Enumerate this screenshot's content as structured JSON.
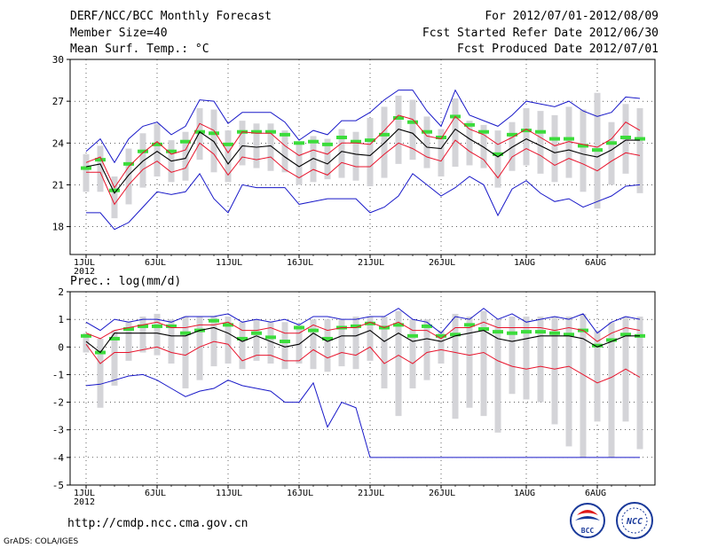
{
  "header": {
    "title": "DERF/NCC/BCC Monthly Forecast",
    "member_size": "Member Size=40",
    "variable": "Mean Surf. Temp.: °C",
    "period": "For 2012/07/01-2012/08/09",
    "started": "Fcst Started Refer Date 2012/06/30",
    "produced": "Fcst Produced Date 2012/07/01"
  },
  "footer": {
    "url": "http://cmdp.ncc.cma.gov.cn",
    "credit": "GrADS: COLA/IGES",
    "logo_bcc": "BCC",
    "logo_ncc": "NCC"
  },
  "colors": {
    "mean": "#000000",
    "spread": "#e8142c",
    "extreme": "#1818c8",
    "box": "#d4d4d8",
    "clim": "#3cdc3c"
  },
  "chart_data": [
    {
      "type": "line",
      "title": "Mean Surf. Temp.: °C",
      "ylim": [
        16,
        30
      ],
      "yticks": [
        18,
        21,
        24,
        27,
        30
      ],
      "x_tick_labels": [
        "1JUL",
        "6JUL",
        "11JUL",
        "16JUL",
        "21JUL",
        "26JUL",
        "1AUG",
        "6AUG"
      ],
      "x_tick_days": [
        1,
        6,
        11,
        16,
        21,
        26,
        32,
        37
      ],
      "year_label": "2012",
      "grid": true,
      "days": 40,
      "series": [
        {
          "name": "max",
          "values": [
            23.4,
            24.3,
            22.6,
            24.3,
            25.2,
            25.5,
            24.6,
            25.2,
            27.1,
            27.0,
            25.4,
            26.2,
            26.2,
            26.2,
            25.5,
            24.2,
            24.9,
            24.6,
            25.6,
            25.6,
            26.2,
            27.1,
            27.8,
            27.8,
            26.3,
            25.2,
            27.8,
            26.0,
            25.6,
            25.2,
            26.0,
            27.0,
            26.8,
            26.6,
            27.0,
            26.3,
            25.9,
            26.2,
            27.3,
            27.2
          ]
        },
        {
          "name": "upper",
          "values": [
            22.6,
            23.0,
            20.8,
            22.3,
            23.3,
            24.1,
            23.2,
            23.5,
            25.4,
            24.9,
            23.3,
            24.8,
            24.7,
            24.7,
            23.8,
            23.1,
            23.5,
            23.2,
            24.0,
            24.0,
            23.9,
            24.9,
            26.0,
            25.7,
            24.5,
            24.3,
            25.9,
            25.0,
            24.6,
            23.9,
            24.4,
            25.0,
            24.4,
            23.8,
            24.1,
            23.9,
            23.7,
            24.3,
            25.5,
            24.9
          ]
        },
        {
          "name": "mean",
          "values": [
            22.3,
            22.5,
            20.4,
            21.7,
            22.7,
            23.4,
            22.7,
            22.9,
            24.8,
            24.1,
            22.5,
            23.8,
            23.7,
            23.8,
            23.0,
            22.3,
            22.9,
            22.5,
            23.4,
            23.2,
            23.1,
            24.0,
            25.0,
            24.7,
            23.7,
            23.6,
            25.0,
            24.3,
            23.7,
            23.0,
            23.7,
            24.3,
            23.8,
            23.3,
            23.5,
            23.2,
            23.0,
            23.5,
            24.2,
            24.2
          ]
        },
        {
          "name": "lower",
          "values": [
            21.9,
            21.9,
            19.6,
            21.0,
            22.1,
            22.7,
            21.9,
            22.2,
            24.0,
            23.2,
            21.7,
            23.0,
            22.8,
            23.0,
            22.1,
            21.5,
            22.1,
            21.7,
            22.6,
            22.3,
            22.3,
            23.2,
            24.0,
            23.6,
            23.0,
            22.7,
            24.2,
            23.4,
            22.8,
            21.5,
            23.0,
            23.6,
            23.1,
            22.4,
            22.9,
            22.5,
            22.0,
            22.7,
            23.3,
            23.1
          ]
        },
        {
          "name": "min",
          "values": [
            19.0,
            19.0,
            17.8,
            18.3,
            19.4,
            20.5,
            20.3,
            20.5,
            21.8,
            20.0,
            19.0,
            21.0,
            20.8,
            20.8,
            20.8,
            19.6,
            19.8,
            20.0,
            20.0,
            20.0,
            19.0,
            19.4,
            20.2,
            21.8,
            21.0,
            20.2,
            20.8,
            21.6,
            21.0,
            18.8,
            20.7,
            21.3,
            20.4,
            19.8,
            20.0,
            19.4,
            19.8,
            20.2,
            20.9,
            21.0
          ]
        },
        {
          "name": "climate",
          "values": [
            22.2,
            22.8,
            20.6,
            22.5,
            23.4,
            23.9,
            23.4,
            24.1,
            24.8,
            24.7,
            23.9,
            24.8,
            24.8,
            24.8,
            24.6,
            24.0,
            24.1,
            23.9,
            24.4,
            24.1,
            24.2,
            24.6,
            25.8,
            25.5,
            24.8,
            24.4,
            25.9,
            25.3,
            24.8,
            23.2,
            24.6,
            24.9,
            24.8,
            24.3,
            24.3,
            23.8,
            23.5,
            24.0,
            24.4,
            24.3
          ]
        },
        {
          "name": "box_top",
          "values": [
            23.2,
            23.8,
            21.6,
            23.6,
            24.7,
            25.4,
            24.2,
            24.8,
            26.5,
            26.4,
            24.9,
            25.6,
            25.4,
            25.4,
            24.9,
            24.0,
            24.5,
            24.3,
            25.0,
            24.8,
            25.8,
            26.6,
            27.4,
            27.1,
            25.9,
            25.0,
            27.2,
            25.6,
            25.3,
            24.9,
            25.5,
            26.5,
            26.3,
            26.0,
            26.6,
            26.4,
            27.6,
            25.5,
            26.8,
            26.5
          ]
        },
        {
          "name": "box_bottom",
          "values": [
            20.5,
            20.5,
            18.6,
            19.6,
            20.8,
            21.6,
            21.2,
            21.3,
            22.8,
            21.9,
            21.2,
            22.4,
            22.2,
            22.0,
            21.9,
            21.0,
            21.2,
            21.4,
            21.5,
            21.3,
            20.9,
            21.5,
            22.5,
            22.8,
            22.2,
            21.6,
            22.3,
            22.4,
            22.2,
            20.8,
            22.0,
            22.4,
            21.8,
            21.2,
            21.5,
            20.5,
            19.3,
            21.0,
            21.8,
            20.4
          ]
        }
      ]
    },
    {
      "type": "line",
      "title": "Prec.: log(mm/d)",
      "ylim": [
        -5,
        2
      ],
      "yticks": [
        -5,
        -4,
        -3,
        -2,
        -1,
        0,
        1,
        2
      ],
      "x_tick_labels": [
        "1JUL",
        "6JUL",
        "11JUL",
        "16JUL",
        "21JUL",
        "26JUL",
        "1AUG",
        "6AUG"
      ],
      "x_tick_days": [
        1,
        6,
        11,
        16,
        21,
        26,
        32,
        37
      ],
      "year_label": "2012",
      "grid": true,
      "days": 40,
      "series": [
        {
          "name": "max",
          "values": [
            0.9,
            0.6,
            1.0,
            0.9,
            1.0,
            1.0,
            0.9,
            1.1,
            1.1,
            1.1,
            1.2,
            0.9,
            1.0,
            0.9,
            1.0,
            0.8,
            1.1,
            1.1,
            1.0,
            1.0,
            1.1,
            1.1,
            1.4,
            1.0,
            0.9,
            0.5,
            1.1,
            1.0,
            1.4,
            1.0,
            1.2,
            0.9,
            1.0,
            1.1,
            1.0,
            1.2,
            0.5,
            0.9,
            1.1,
            1.0
          ]
        },
        {
          "name": "upper",
          "values": [
            0.5,
            0.3,
            0.6,
            0.7,
            0.8,
            0.9,
            0.7,
            0.7,
            0.8,
            0.8,
            0.9,
            0.6,
            0.6,
            0.7,
            0.5,
            0.5,
            0.8,
            0.6,
            0.7,
            0.7,
            0.9,
            0.7,
            0.9,
            0.6,
            0.6,
            0.3,
            0.7,
            0.7,
            0.9,
            0.7,
            0.7,
            0.7,
            0.7,
            0.6,
            0.7,
            0.6,
            0.2,
            0.5,
            0.7,
            0.6
          ]
        },
        {
          "name": "mean",
          "values": [
            0.2,
            -0.2,
            0.5,
            0.5,
            0.5,
            0.5,
            0.4,
            0.4,
            0.6,
            0.7,
            0.5,
            0.2,
            0.4,
            0.2,
            0.0,
            0.1,
            0.5,
            0.2,
            0.4,
            0.4,
            0.6,
            0.2,
            0.5,
            0.2,
            0.3,
            0.2,
            0.4,
            0.5,
            0.6,
            0.3,
            0.2,
            0.3,
            0.4,
            0.4,
            0.4,
            0.3,
            0.0,
            0.2,
            0.4,
            0.4
          ]
        },
        {
          "name": "lower",
          "values": [
            0.1,
            -0.6,
            -0.2,
            -0.2,
            -0.1,
            0.0,
            -0.2,
            -0.3,
            0.0,
            0.2,
            0.1,
            -0.5,
            -0.3,
            -0.3,
            -0.5,
            -0.5,
            -0.1,
            -0.4,
            -0.2,
            -0.3,
            0.0,
            -0.6,
            -0.3,
            -0.6,
            -0.2,
            -0.1,
            -0.2,
            -0.3,
            -0.2,
            -0.5,
            -0.7,
            -0.8,
            -0.7,
            -0.8,
            -0.7,
            -1.0,
            -1.3,
            -1.1,
            -0.8,
            -1.1
          ]
        },
        {
          "name": "min",
          "values": [
            -1.4,
            -1.35,
            -1.2,
            -1.05,
            -1.0,
            -1.2,
            -1.5,
            -1.8,
            -1.6,
            -1.5,
            -1.2,
            -1.4,
            -1.5,
            -1.6,
            -2.0,
            -2.0,
            -1.3,
            -2.9,
            -2.0,
            -2.2,
            -4.0,
            -4.0,
            -4.0,
            -4.0,
            -4.0,
            -4.0,
            -4.0,
            -4.0,
            -4.0,
            -4.0,
            -4.0,
            -4.0,
            -4.0,
            -4.0,
            -4.0,
            -4.0,
            -4.0,
            -4.0,
            -4.0,
            -4.0
          ]
        },
        {
          "name": "climate",
          "values": [
            0.4,
            -0.2,
            0.3,
            0.65,
            0.75,
            0.75,
            0.75,
            0.5,
            0.6,
            0.95,
            0.8,
            0.3,
            0.5,
            0.35,
            0.2,
            0.7,
            0.6,
            0.3,
            0.7,
            0.75,
            0.85,
            0.7,
            0.8,
            0.4,
            0.75,
            0.4,
            0.45,
            0.8,
            0.65,
            0.55,
            0.5,
            0.55,
            0.55,
            0.5,
            0.45,
            0.6,
            0.05,
            0.25,
            0.45,
            0.4
          ]
        },
        {
          "name": "box_top",
          "values": [
            0.5,
            0.3,
            0.6,
            0.9,
            1.1,
            1.2,
            1.0,
            1.1,
            1.1,
            1.1,
            1.1,
            0.9,
            1.0,
            0.9,
            0.9,
            0.8,
            1.0,
            1.0,
            1.0,
            1.1,
            1.1,
            1.1,
            1.3,
            1.0,
            1.0,
            0.6,
            1.2,
            1.1,
            1.3,
            1.0,
            1.1,
            1.1,
            1.1,
            1.1,
            1.1,
            1.2,
            0.6,
            0.9,
            1.1,
            1.1
          ]
        },
        {
          "name": "box_bottom",
          "values": [
            -0.2,
            -2.2,
            -1.4,
            -0.5,
            -0.2,
            -0.3,
            -0.6,
            -1.5,
            -1.2,
            -0.7,
            -0.6,
            -0.8,
            -0.5,
            -0.6,
            -0.8,
            -0.6,
            -0.8,
            -0.9,
            -0.7,
            -0.8,
            -0.5,
            -1.5,
            -2.5,
            -1.5,
            -1.2,
            -0.6,
            -2.6,
            -2.2,
            -2.5,
            -3.1,
            -1.7,
            -1.9,
            -2.0,
            -2.8,
            -3.6,
            -4.0,
            -2.7,
            -4.0,
            -2.7,
            -3.7
          ]
        }
      ]
    }
  ]
}
